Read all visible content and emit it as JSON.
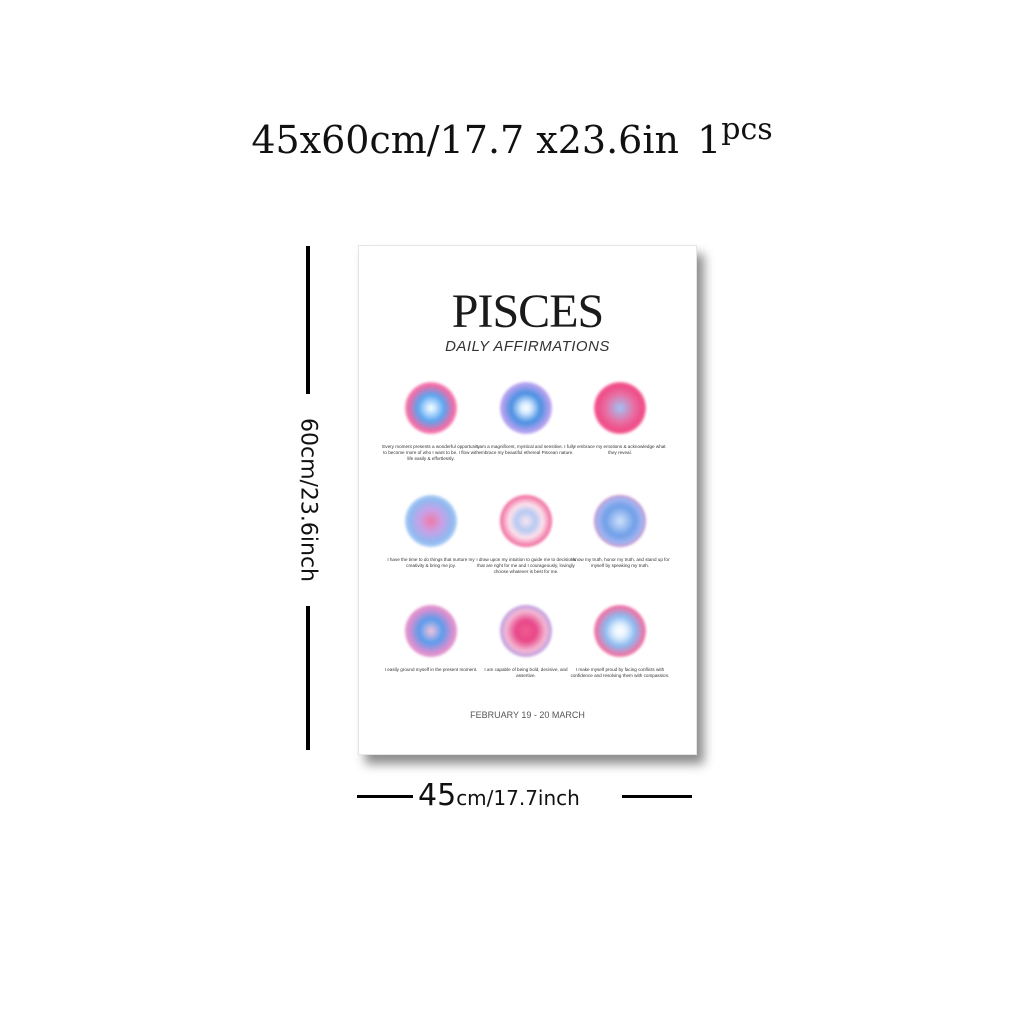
{
  "header": {
    "size_text": "45x60cm/17.7 x23.6in",
    "quantity": "1",
    "quantity_unit": "pcs"
  },
  "dimensions": {
    "height_label": "60cm/23.6inch",
    "width_number": "45",
    "width_unit": "cm/17.7inch"
  },
  "poster": {
    "title": "PISCES",
    "subtitle": "DAILY AFFIRMATIONS",
    "dates": "FEBRUARY 19 - 20 MARCH",
    "affirmations": [
      {
        "text": "Every moment presents a wonderful opportunity to become more of who I want to be. I flow with life easily & effortlessly.",
        "orb": "radial-gradient(circle, #ffffff 0%, #bfe0ff 14%, #5aa5ef 36%, #f26aa5 62%, #fcc4dc 80%, rgba(255,255,255,0) 100%)"
      },
      {
        "text": "I am a magnificent, mystical and sensitive. I fully embrace my beautiful ethereal Piscean nature.",
        "orb": "radial-gradient(circle, #ffffff 0%, #d9ecff 14%, #4a90e2 40%, #b9a3f0 66%, #ecd9f8 84%, rgba(255,255,255,0) 100%)"
      },
      {
        "text": "I embrace my emotions & acknowledge what they reveal.",
        "orb": "radial-gradient(circle, #9ec4f5 0%, #e870a4 38%, #f04a86 62%, #fbb5d1 84%, rgba(255,255,255,0) 100%)"
      },
      {
        "text": "I have the time to do things that nurture my creativity & bring me joy.",
        "orb": "radial-gradient(circle, #f07aa6 0%, #c9a0e6 30%, #8fb8f0 58%, #d2e9fb 84%, rgba(255,255,255,0) 100%)"
      },
      {
        "text": "I draw upon my intuition to guide me to decisions that are right for me and I courageously, lovingly choose whatever is best for me.",
        "orb": "radial-gradient(circle, #fbe6ef 0%, #b5c9f2 26%, #fde2ec 46%, #f06a9c 70%, #fcc5da 86%, rgba(255,255,255,0) 100%)"
      },
      {
        "text": "I know my truth, honor my truth, and stand up for myself by speaking my truth.",
        "orb": "radial-gradient(circle, #cfe1fb 0%, #6f9fe8 40%, #a6b5f0 62%, #ee6ea2 78%, #fcd2e2 90%, rgba(255,255,255,0) 100%)"
      },
      {
        "text": "I easily ground myself in the present moment.",
        "orb": "radial-gradient(circle, #f6c4dc 0%, #5a9ced 32%, #d98fd0 60%, #f3a9cc 82%, rgba(255,255,255,0) 100%)"
      },
      {
        "text": "I am capable of being bold, decisive, and assertive.",
        "orb": "radial-gradient(circle, #f25a8e 0%, #e8488a 28%, #f4b8d2 54%, #b19ae6 74%, #e1d4f5 88%, rgba(255,255,255,0) 100%)"
      },
      {
        "text": "I make myself proud by facing conflicts with confidence and resolving them with compassion.",
        "orb": "radial-gradient(circle, #ffffff 0%, #e2f0ff 18%, #8cb9ef 42%, #ef74a5 66%, #fbc8dc 84%, rgba(255,255,255,0) 100%)"
      }
    ]
  }
}
